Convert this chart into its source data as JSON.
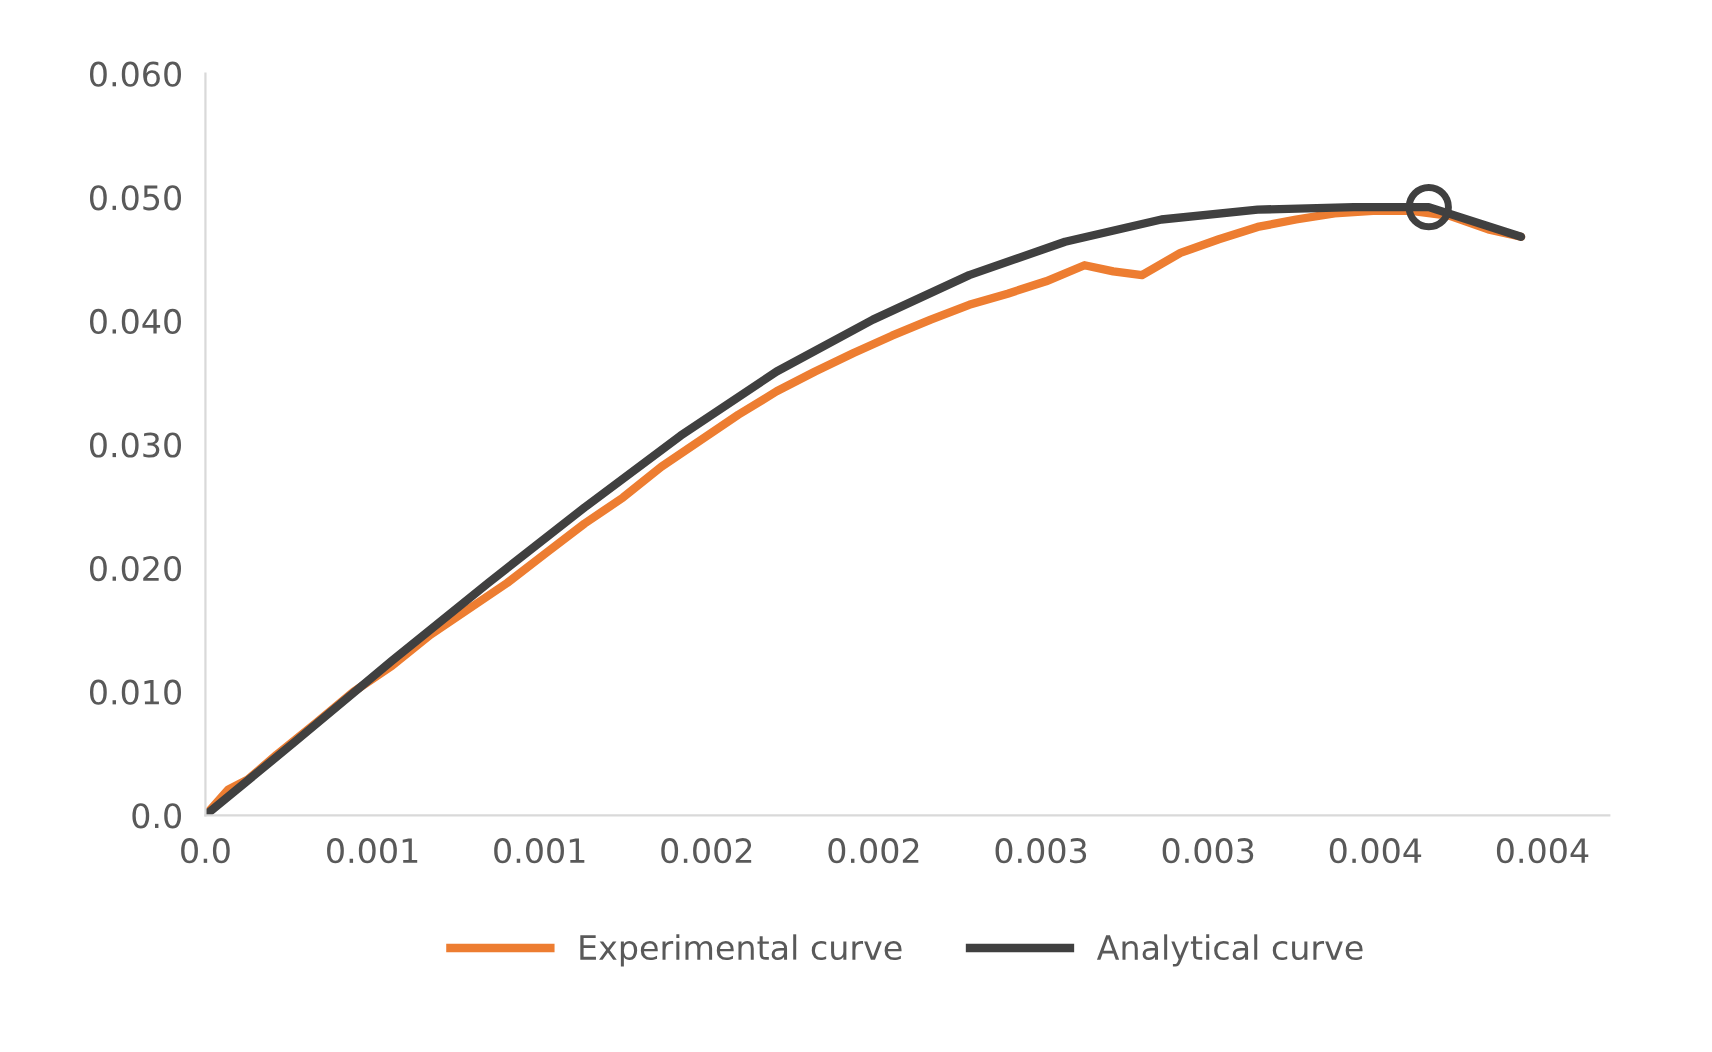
{
  "chart_data": {
    "type": "line",
    "xlim": [
      0,
      0.0042
    ],
    "xticks": [
      {
        "value": 0,
        "label": "0.0"
      },
      {
        "value": 0.0005,
        "label": "0.001"
      },
      {
        "value": 0.001,
        "label": "0.001"
      },
      {
        "value": 0.0015,
        "label": "0.002"
      },
      {
        "value": 0.002,
        "label": "0.002"
      },
      {
        "value": 0.0025,
        "label": "0.003"
      },
      {
        "value": 0.003,
        "label": "0.003"
      },
      {
        "value": 0.0035,
        "label": "0.004"
      },
      {
        "value": 0.004,
        "label": "0.004"
      }
    ],
    "ylim": [
      0,
      0.06
    ],
    "yticks": [
      {
        "value": 0,
        "label": "0.0"
      },
      {
        "value": 0.01,
        "label": "0.010"
      },
      {
        "value": 0.02,
        "label": "0.020"
      },
      {
        "value": 0.03,
        "label": "0.030"
      },
      {
        "value": 0.04,
        "label": "0.040"
      },
      {
        "value": 0.05,
        "label": "0.050"
      },
      {
        "value": 0.06,
        "label": "0.060"
      }
    ],
    "grid": false,
    "legend": "bottom",
    "series": [
      {
        "name": "Experimental curve",
        "color": "#ed7d31",
        "marker": "none",
        "x": [
          0,
          6.9e-05,
          0.000127,
          0.000213,
          0.000328,
          0.000443,
          0.000558,
          0.000673,
          0.000788,
          0.000903,
          0.001018,
          0.001134,
          0.001249,
          0.001364,
          0.001479,
          0.001594,
          0.001709,
          0.001824,
          0.001939,
          0.002054,
          0.00217,
          0.002285,
          0.0024,
          0.002515,
          0.00263,
          0.002716,
          0.002802,
          0.002917,
          0.003032,
          0.003148,
          0.003263,
          0.003378,
          0.003493,
          0.003608,
          0.003723,
          0.003838,
          0.003936
        ],
        "values": [
          0,
          0.0021,
          0.0029,
          0.0049,
          0.0074,
          0.01,
          0.0121,
          0.0146,
          0.0167,
          0.0188,
          0.0212,
          0.0236,
          0.0257,
          0.0282,
          0.0303,
          0.0324,
          0.0343,
          0.0359,
          0.0374,
          0.0388,
          0.0401,
          0.0413,
          0.0422,
          0.0432,
          0.0445,
          0.044,
          0.0437,
          0.0455,
          0.0466,
          0.0476,
          0.0482,
          0.0487,
          0.0489,
          0.0489,
          0.0485,
          0.0474,
          0.0468
        ]
      },
      {
        "name": "Analytical curve",
        "color": "#404040",
        "marker": "none",
        "x": [
          0,
          0.00027,
          0.000558,
          0.000846,
          0.001134,
          0.001421,
          0.001709,
          0.001997,
          0.002285,
          0.002572,
          0.00286,
          0.003148,
          0.003436,
          0.00366,
          0.003936
        ],
        "values": [
          0,
          0.006,
          0.0125,
          0.0188,
          0.0249,
          0.0307,
          0.0359,
          0.0401,
          0.0437,
          0.0464,
          0.0482,
          0.049,
          0.0492,
          0.0492,
          0.0468
        ]
      },
      {
        "type": "scatter",
        "color": "#404040",
        "marker": "circle",
        "x": [
          0.00366
        ],
        "values": [
          0.0492
        ]
      }
    ]
  }
}
